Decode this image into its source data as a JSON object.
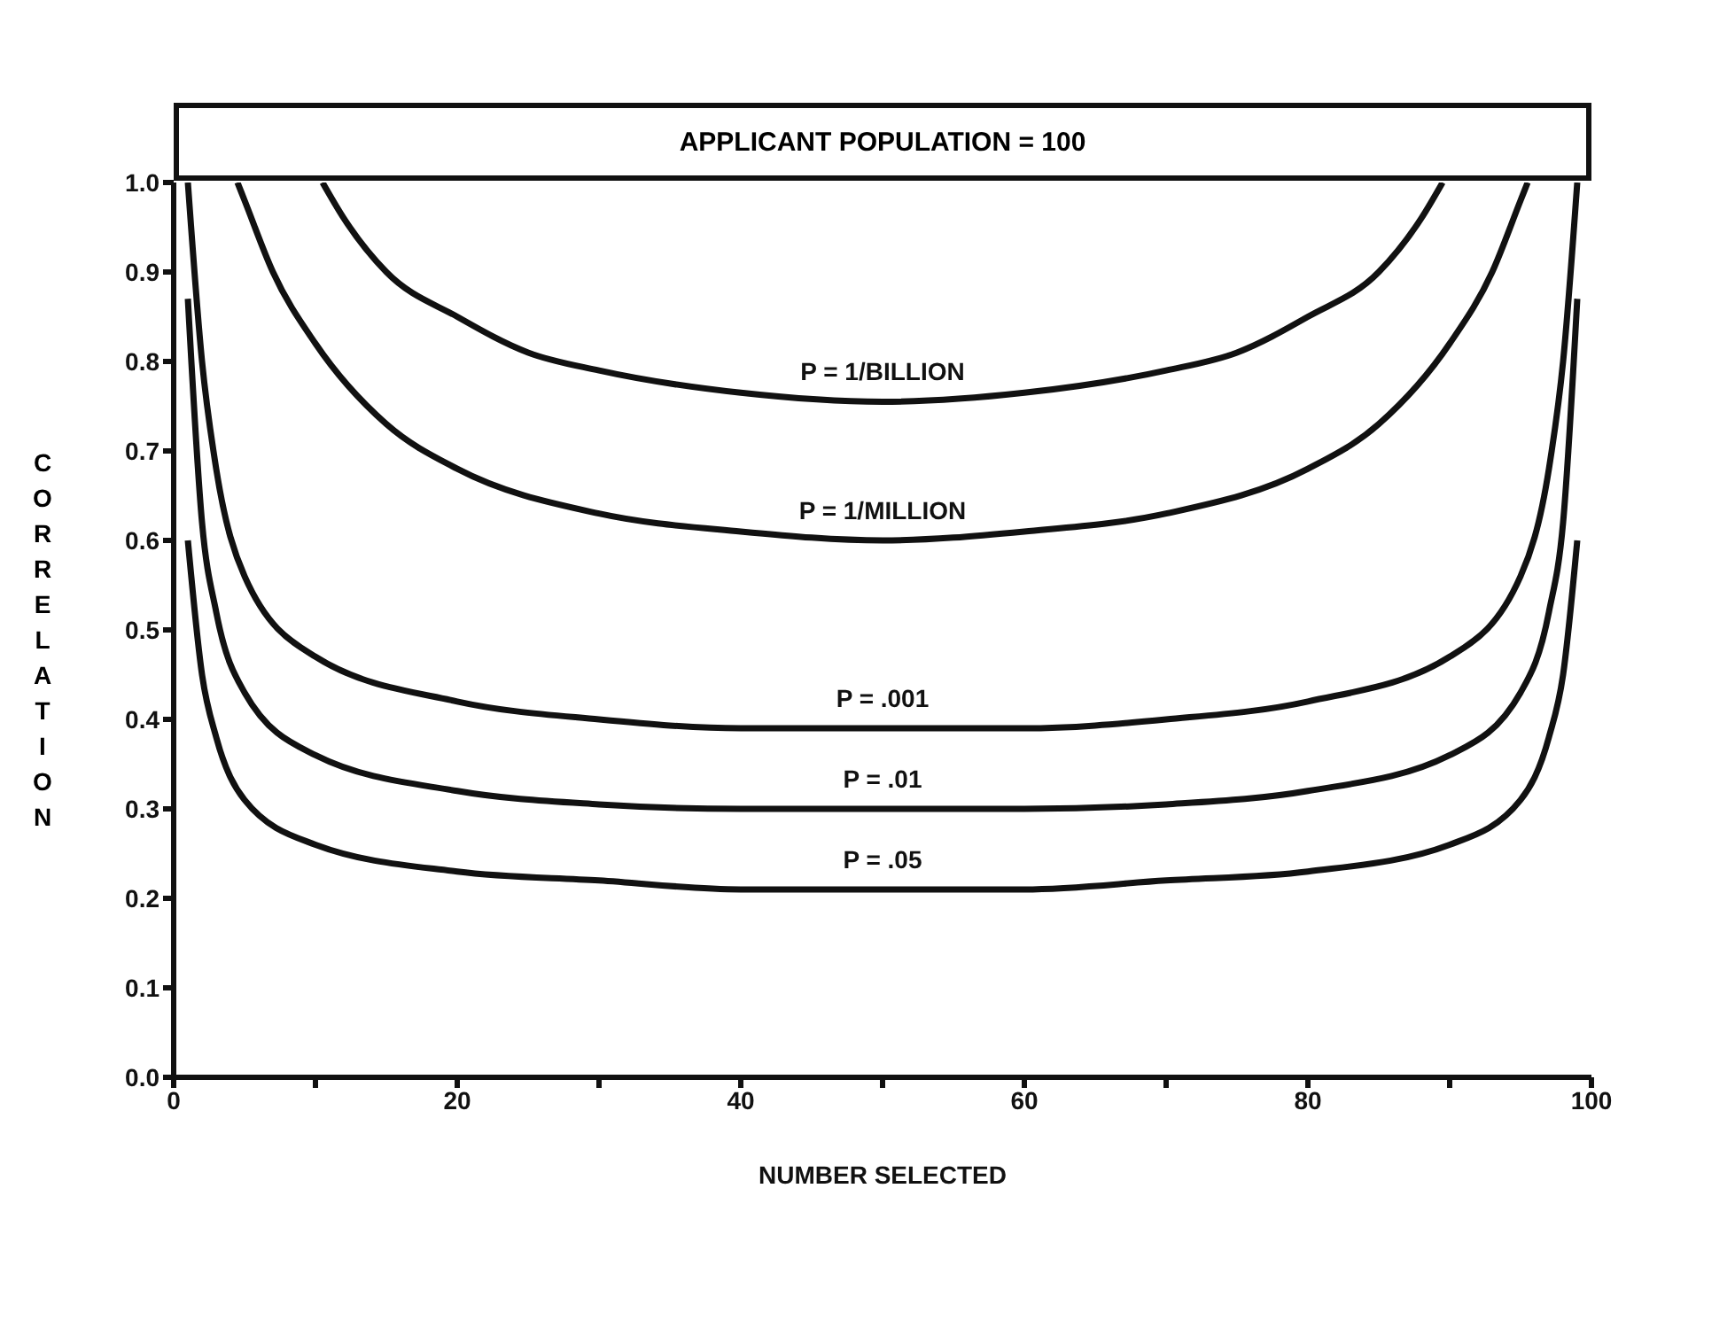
{
  "chart_data": {
    "type": "line",
    "title": "APPLICANT POPULATION = 100",
    "xlabel": "NUMBER SELECTED",
    "ylabel": "CORRELATION",
    "xlim": [
      0,
      100
    ],
    "ylim": [
      0,
      1
    ],
    "xticks": [
      0,
      {
        "value": 10,
        "label": null
      },
      20,
      {
        "value": 30,
        "label": null
      },
      40,
      {
        "value": 50,
        "label": null
      },
      60,
      {
        "value": 70,
        "label": null
      },
      80,
      {
        "value": 90,
        "label": null
      },
      100
    ],
    "yticks": [
      {
        "value": 0,
        "label": "0.0"
      },
      0.1,
      0.2,
      0.3,
      0.4,
      0.5,
      0.6,
      0.7,
      0.8,
      0.9,
      {
        "value": 1,
        "label": "1.0"
      }
    ],
    "grid": false,
    "legend": false,
    "marker": "none",
    "line_style": "solid",
    "series": [
      {
        "name": "P = 1/BILLION",
        "color": "#111111",
        "x": [
          10.5,
          12,
          15,
          20,
          25,
          30,
          40,
          50,
          60,
          70,
          75,
          80,
          85,
          88,
          89.5
        ],
        "values": [
          1.0,
          0.96,
          0.9,
          0.85,
          0.81,
          0.79,
          0.765,
          0.755,
          0.765,
          0.79,
          0.81,
          0.85,
          0.9,
          0.96,
          1.0
        ]
      },
      {
        "name": "P = 1/MILLION",
        "color": "#111111",
        "x": [
          4.5,
          5,
          7,
          10,
          15,
          20,
          30,
          40,
          50,
          60,
          70,
          80,
          85,
          90,
          93,
          95,
          95.5
        ],
        "values": [
          1.0,
          0.98,
          0.9,
          0.82,
          0.73,
          0.68,
          0.63,
          0.61,
          0.6,
          0.61,
          0.63,
          0.68,
          0.73,
          0.82,
          0.9,
          0.98,
          1.0
        ]
      },
      {
        "name": "P = .001",
        "color": "#111111",
        "x": [
          1,
          2,
          3,
          5,
          10,
          20,
          30,
          40,
          50,
          60,
          70,
          80,
          90,
          95,
          97,
          98,
          99
        ],
        "values": [
          1.0,
          0.8,
          0.68,
          0.56,
          0.47,
          0.42,
          0.4,
          0.39,
          0.39,
          0.39,
          0.4,
          0.42,
          0.47,
          0.56,
          0.68,
          0.8,
          1.0
        ]
      },
      {
        "name": "P = .01",
        "color": "#111111",
        "x": [
          1,
          2,
          3,
          5,
          10,
          20,
          30,
          40,
          50,
          60,
          70,
          80,
          90,
          95,
          97,
          98,
          99
        ],
        "values": [
          0.87,
          0.62,
          0.52,
          0.43,
          0.36,
          0.32,
          0.305,
          0.3,
          0.3,
          0.3,
          0.305,
          0.32,
          0.36,
          0.43,
          0.52,
          0.62,
          0.87
        ]
      },
      {
        "name": "P = .05",
        "color": "#111111",
        "x": [
          1,
          2,
          3,
          5,
          10,
          20,
          30,
          40,
          50,
          60,
          70,
          80,
          90,
          95,
          97,
          98,
          99
        ],
        "values": [
          0.6,
          0.45,
          0.38,
          0.31,
          0.26,
          0.23,
          0.22,
          0.21,
          0.21,
          0.21,
          0.22,
          0.23,
          0.26,
          0.31,
          0.38,
          0.45,
          0.6
        ]
      }
    ]
  }
}
